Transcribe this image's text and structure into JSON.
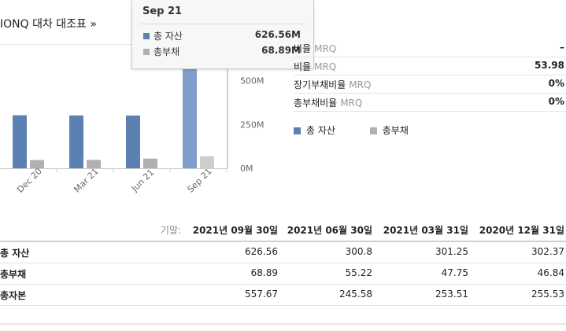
{
  "title": "IONQ 대차 대조표 »",
  "tooltip": {
    "date": "Sep 21",
    "rows": [
      {
        "label": "총 자산",
        "value": "626.56M",
        "color": "#5b80b2"
      },
      {
        "label": "총부채",
        "value": "68.89M",
        "color": "#b0b0b0"
      }
    ]
  },
  "chart_data": {
    "type": "bar",
    "categories": [
      "Dec 20",
      "Mar 21",
      "Jun 21",
      "Sep 21"
    ],
    "series": [
      {
        "name": "총 자산",
        "values": [
          302.37,
          301.25,
          300.8,
          626.56
        ],
        "color": "#5b80b2"
      },
      {
        "name": "총부채",
        "values": [
          46.84,
          47.75,
          55.22,
          68.89
        ],
        "color": "#b0b0b0"
      }
    ],
    "y_ticks": [
      "0M",
      "250M",
      "500M"
    ],
    "ylim": [
      0,
      700
    ]
  },
  "ratios": [
    {
      "label": "비율",
      "mrq": "MRQ",
      "value": "–"
    },
    {
      "label": "비율",
      "mrq": "MRQ",
      "value": "53.98"
    },
    {
      "label": "장기부채비율",
      "mrq": "MRQ",
      "value": "0%"
    },
    {
      "label": "총부채비율",
      "mrq": "MRQ",
      "value": "0%"
    }
  ],
  "legend": [
    {
      "label": "총 자산",
      "color": "#5b80b2"
    },
    {
      "label": "총부채",
      "color": "#b0b0b0"
    }
  ],
  "table": {
    "period_label": "기말:",
    "periods": [
      "2021년 09월 30일",
      "2021년 06월 30일",
      "2021년 03월 31일",
      "2020년 12월 31일"
    ],
    "rows": [
      {
        "label": "총 자산",
        "values": [
          "626.56",
          "300.8",
          "301.25",
          "302.37"
        ]
      },
      {
        "label": "총부채",
        "values": [
          "68.89",
          "55.22",
          "47.75",
          "46.84"
        ]
      },
      {
        "label": "총자본",
        "values": [
          "557.67",
          "245.58",
          "253.51",
          "255.53"
        ]
      }
    ]
  }
}
